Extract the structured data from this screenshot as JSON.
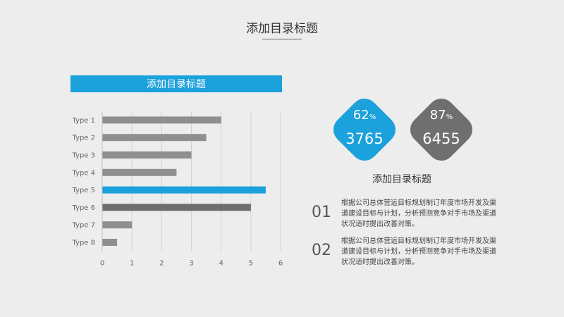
{
  "slide": {
    "title": "添加目录标题"
  },
  "chart_header": "添加目录标题",
  "chart_data": {
    "type": "bar",
    "orientation": "horizontal",
    "categories": [
      "Type 1",
      "Type 2",
      "Type 3",
      "Type 4",
      "Type 5",
      "Type 6",
      "Type 7",
      "Type 8"
    ],
    "values": [
      4,
      3.5,
      3,
      2.5,
      5.5,
      5,
      1,
      0.5
    ],
    "xlim": [
      0,
      6
    ],
    "xticks": [
      "0",
      "1",
      "2",
      "3",
      "4",
      "5",
      "6"
    ],
    "grid": "vertical",
    "highlight_index": 4,
    "colors": {
      "bar": "#8f8f8f",
      "highlight": "#1ba1dc",
      "dark": "#6e6e6e"
    }
  },
  "badges": [
    {
      "percent": "62",
      "percent_sign": "%",
      "value": "3765",
      "color": "#1ba1dc"
    },
    {
      "percent": "87",
      "percent_sign": "%",
      "value": "6455",
      "color": "#6f6f6f"
    }
  ],
  "right_title": "添加目录标题",
  "items": [
    {
      "number": "01",
      "text": "根据公司总体营运目标规划制订年度市场开发及渠道建设目标与计划，分析预测竞争对手市场及渠道状况适时提出改善对策。"
    },
    {
      "number": "02",
      "text": "根据公司总体营运目标规划制订年度市场开发及渠道建设目标与计划，分析预测竞争对手市场及渠道状况适时提出改善对策。"
    }
  ]
}
